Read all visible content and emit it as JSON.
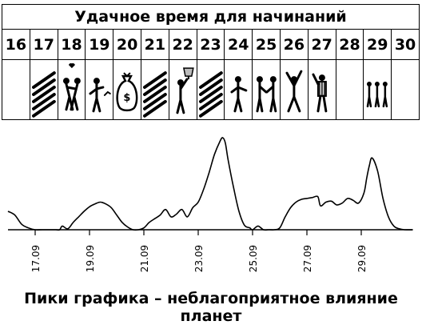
{
  "calendar": {
    "title": "Удачное время для начинаний",
    "days": [
      {
        "day": "16",
        "icon": ""
      },
      {
        "day": "17",
        "icon": "hatch-icon"
      },
      {
        "day": "18",
        "icon": "couple-heart-icon"
      },
      {
        "day": "19",
        "icon": "person-chart-icon"
      },
      {
        "day": "20",
        "icon": "money-bag-icon"
      },
      {
        "day": "21",
        "icon": "hatch-icon"
      },
      {
        "day": "22",
        "icon": "person-trophy-icon"
      },
      {
        "day": "23",
        "icon": "hatch-icon"
      },
      {
        "day": "24",
        "icon": "person-presenting-icon"
      },
      {
        "day": "25",
        "icon": "handshake-icon"
      },
      {
        "day": "26",
        "icon": "celebrating-person-icon"
      },
      {
        "day": "27",
        "icon": "referee-icon"
      },
      {
        "day": "28",
        "icon": ""
      },
      {
        "day": "29",
        "icon": "group-people-icon"
      },
      {
        "day": "30",
        "icon": ""
      }
    ]
  },
  "chart_data": {
    "type": "line",
    "title": "",
    "xlabel": "",
    "ylabel": "",
    "xlim": [
      16.0,
      31.0
    ],
    "ylim": [
      0,
      100
    ],
    "tick_labels": [
      "17.09",
      "19.09",
      "21.09",
      "23.09",
      "25.09",
      "27.09",
      "29.09"
    ],
    "tick_positions": [
      17,
      19,
      21,
      23,
      25,
      27,
      29
    ],
    "series": [
      {
        "x": [
          16.0,
          16.25,
          16.5,
          16.75,
          17.0,
          17.25,
          17.5,
          17.75,
          17.9,
          18.0,
          18.2,
          18.4,
          18.6,
          18.8,
          19.0,
          19.2,
          19.4,
          19.6,
          19.8,
          20.0,
          20.2,
          20.4,
          20.6,
          20.8,
          21.0,
          21.2,
          21.4,
          21.6,
          21.8,
          22.0,
          22.2,
          22.4,
          22.6,
          22.8,
          23.0,
          23.2,
          23.4,
          23.6,
          23.8,
          23.9,
          24.0,
          24.1,
          24.3,
          24.5,
          24.7,
          24.9,
          25.0,
          25.2,
          25.4,
          25.6,
          25.8,
          26.0,
          26.2,
          26.4,
          26.6,
          26.8,
          27.0,
          27.2,
          27.4,
          27.5,
          27.7,
          27.9,
          28.1,
          28.3,
          28.5,
          28.7,
          28.9,
          29.1,
          29.2,
          29.3,
          29.4,
          29.6,
          29.8,
          30.0,
          30.2,
          30.4,
          30.6,
          30.9
        ],
        "y": [
          20,
          16,
          6,
          2,
          0,
          0,
          0,
          0,
          0,
          4,
          1,
          8,
          14,
          20,
          25,
          28,
          30,
          28,
          24,
          16,
          8,
          3,
          0,
          0,
          2,
          8,
          12,
          16,
          22,
          14,
          17,
          22,
          14,
          24,
          30,
          44,
          62,
          82,
          96,
          100,
          94,
          76,
          46,
          20,
          5,
          2,
          0,
          4,
          0,
          0,
          0,
          2,
          14,
          24,
          30,
          33,
          34,
          35,
          36,
          26,
          30,
          31,
          27,
          29,
          34,
          32,
          29,
          40,
          56,
          70,
          78,
          64,
          34,
          14,
          4,
          1,
          0,
          0
        ]
      }
    ]
  },
  "caption": "Пики графика – неблагоприятное влияние планет"
}
